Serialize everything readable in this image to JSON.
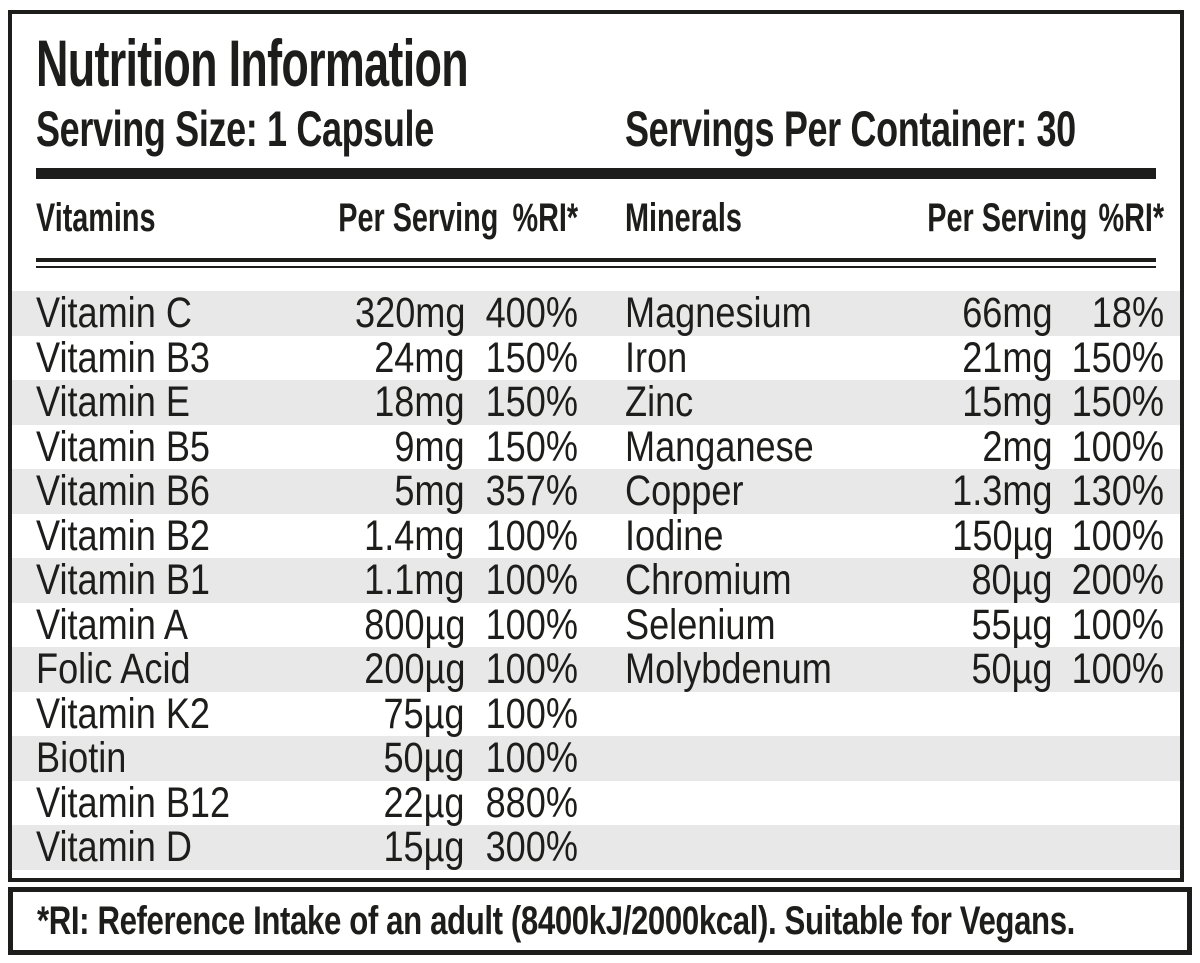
{
  "title": "Nutrition Information",
  "serving": {
    "size_label": "Serving Size: 1 Capsule",
    "per_container_label": "Servings Per Container: 30"
  },
  "headers": {
    "vitamins": {
      "name": "Vitamins",
      "per_serving": "Per Serving",
      "ri": "%RI*"
    },
    "minerals": {
      "name": "Minerals",
      "per_serving": "Per Serving",
      "ri": "%RI*"
    }
  },
  "vitamins": [
    {
      "name": "Vitamin C",
      "amount": "320mg",
      "ri": "400%"
    },
    {
      "name": "Vitamin B3",
      "amount": "24mg",
      "ri": "150%"
    },
    {
      "name": "Vitamin E",
      "amount": "18mg",
      "ri": "150%"
    },
    {
      "name": "Vitamin B5",
      "amount": "9mg",
      "ri": "150%"
    },
    {
      "name": "Vitamin B6",
      "amount": "5mg",
      "ri": "357%"
    },
    {
      "name": "Vitamin B2",
      "amount": "1.4mg",
      "ri": "100%"
    },
    {
      "name": "Vitamin B1",
      "amount": "1.1mg",
      "ri": "100%"
    },
    {
      "name": "Vitamin A",
      "amount": "800µg",
      "ri": "100%"
    },
    {
      "name": "Folic Acid",
      "amount": "200µg",
      "ri": "100%"
    },
    {
      "name": "Vitamin K2",
      "amount": "75µg",
      "ri": "100%"
    },
    {
      "name": "Biotin",
      "amount": "50µg",
      "ri": "100%"
    },
    {
      "name": "Vitamin B12",
      "amount": "22µg",
      "ri": "880%"
    },
    {
      "name": "Vitamin D",
      "amount": "15µg",
      "ri": "300%"
    }
  ],
  "minerals": [
    {
      "name": "Magnesium",
      "amount": "66mg",
      "ri": "18%"
    },
    {
      "name": "Iron",
      "amount": "21mg",
      "ri": "150%"
    },
    {
      "name": "Zinc",
      "amount": "15mg",
      "ri": "150%"
    },
    {
      "name": "Manganese",
      "amount": "2mg",
      "ri": "100%"
    },
    {
      "name": "Copper",
      "amount": "1.3mg",
      "ri": "130%"
    },
    {
      "name": "Iodine",
      "amount": "150µg",
      "ri": "100%"
    },
    {
      "name": "Chromium",
      "amount": "80µg",
      "ri": "200%"
    },
    {
      "name": "Selenium",
      "amount": "55µg",
      "ri": "100%"
    },
    {
      "name": "Molybdenum",
      "amount": "50µg",
      "ri": "100%"
    }
  ],
  "footnote": "*RI: Reference Intake of an adult (8400kJ/2000kcal). Suitable for Vegans.",
  "colors": {
    "ink": "#1d1d1b",
    "stripe": "#e8e8e8",
    "paper": "#ffffff"
  }
}
